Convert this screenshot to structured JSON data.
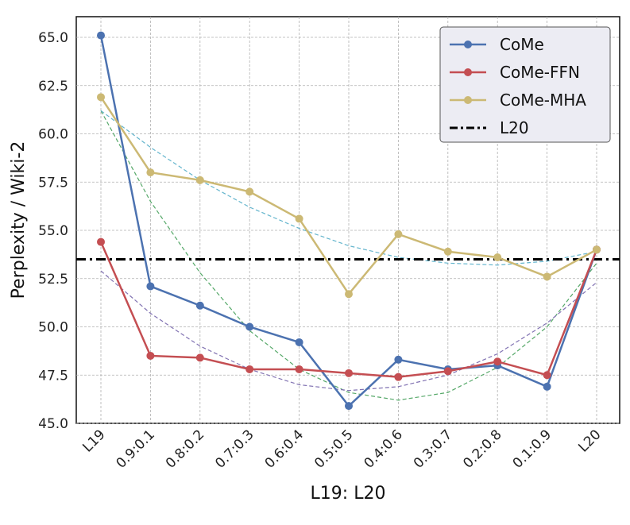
{
  "chart_data": {
    "type": "line",
    "xlabel": "L19: L20",
    "ylabel": "Perplexity / Wiki-2",
    "categories": [
      "L19",
      "0.9:0.1",
      "0.8:0.2",
      "0.7:0.3",
      "0.6:0.4",
      "0.5:0.5",
      "0.4:0.6",
      "0.3:0.7",
      "0.2:0.8",
      "0.1:0.9",
      "L20"
    ],
    "yticks": [
      "45.0",
      "47.5",
      "50.0",
      "52.5",
      "55.0",
      "57.5",
      "60.0",
      "62.5",
      "65.0"
    ],
    "ylim": [
      45.0,
      66.5
    ],
    "grid": true,
    "legend_position": "top-right",
    "series": [
      {
        "name": "CoMe",
        "color": "#4c72b0",
        "values": [
          65.1,
          52.1,
          51.1,
          50.0,
          49.2,
          45.9,
          48.3,
          47.8,
          48.0,
          46.9,
          54.0
        ]
      },
      {
        "name": "CoMe-FFN",
        "color": "#c44e52",
        "values": [
          54.4,
          48.5,
          48.4,
          47.8,
          47.8,
          47.6,
          47.4,
          47.7,
          48.2,
          47.5,
          54.0
        ]
      },
      {
        "name": "CoMe-MHA",
        "color": "#ccb974",
        "values": [
          61.9,
          58.0,
          57.6,
          57.0,
          55.6,
          51.7,
          54.8,
          53.9,
          53.6,
          52.6,
          54.0
        ]
      }
    ],
    "reference_line": {
      "name": "L20",
      "value": 53.5,
      "color": "#000000",
      "style": "dash-dot"
    },
    "trend_lines": [
      {
        "color": "#55a868",
        "values": [
          61.2,
          56.5,
          52.8,
          49.8,
          47.8,
          46.6,
          46.2,
          46.6,
          47.9,
          50.0,
          53.3
        ]
      },
      {
        "color": "#64b5cd",
        "values": [
          61.2,
          59.3,
          57.6,
          56.2,
          55.1,
          54.2,
          53.6,
          53.3,
          53.2,
          53.4,
          53.9
        ]
      },
      {
        "color": "#8172b2",
        "values": [
          52.9,
          50.7,
          49.0,
          47.8,
          47.0,
          46.7,
          46.9,
          47.5,
          48.6,
          50.2,
          52.3
        ]
      }
    ]
  }
}
